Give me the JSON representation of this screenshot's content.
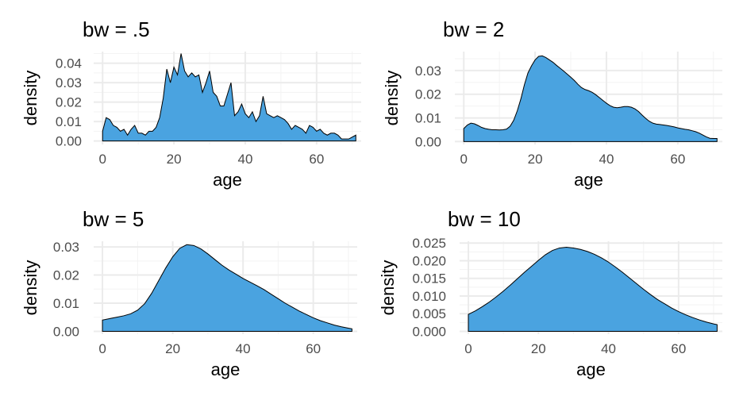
{
  "chart_data": [
    {
      "type": "area",
      "title": "bw = .5",
      "xlabel": "age",
      "ylabel": "density",
      "xlim": [
        -2.5,
        72.5
      ],
      "ylim": [
        -0.0018,
        0.046
      ],
      "xticks": [
        0,
        20,
        40,
        60
      ],
      "xtick_labels": [
        "0",
        "20",
        "40",
        "60"
      ],
      "yticks": [
        0,
        0.01,
        0.02,
        0.03,
        0.04
      ],
      "ytick_labels": [
        "0.00",
        "0.01",
        "0.02",
        "0.03",
        "0.04"
      ],
      "grid": true,
      "fill_color": "#4aa3e0",
      "x": [
        0,
        1,
        2,
        3,
        4,
        5,
        6,
        7,
        8,
        9,
        10,
        11,
        12,
        13,
        14,
        15,
        16,
        17,
        18,
        19,
        20,
        21,
        22,
        23,
        24,
        25,
        26,
        27,
        28,
        29,
        30,
        31,
        32,
        33,
        34,
        35,
        36,
        37,
        38,
        39,
        40,
        41,
        42,
        43,
        44,
        45,
        46,
        47,
        48,
        49,
        50,
        51,
        52,
        53,
        54,
        55,
        56,
        57,
        58,
        59,
        60,
        61,
        62,
        63,
        64,
        65,
        66,
        67,
        68,
        69,
        70,
        71
      ],
      "values": [
        0.005,
        0.012,
        0.011,
        0.008,
        0.007,
        0.005,
        0.006,
        0.003,
        0.006,
        0.008,
        0.004,
        0.004,
        0.003,
        0.005,
        0.005,
        0.007,
        0.012,
        0.022,
        0.037,
        0.03,
        0.038,
        0.034,
        0.045,
        0.036,
        0.033,
        0.035,
        0.033,
        0.034,
        0.025,
        0.03,
        0.036,
        0.025,
        0.023,
        0.018,
        0.018,
        0.024,
        0.03,
        0.013,
        0.015,
        0.019,
        0.014,
        0.012,
        0.015,
        0.01,
        0.013,
        0.023,
        0.014,
        0.013,
        0.012,
        0.013,
        0.012,
        0.011,
        0.009,
        0.006,
        0.008,
        0.007,
        0.006,
        0.004,
        0.008,
        0.007,
        0.005,
        0.006,
        0.004,
        0.003,
        0.004,
        0.004,
        0.003,
        0.001,
        0.001,
        0.001,
        0.002,
        0.003
      ]
    },
    {
      "type": "area",
      "title": "bw = 2",
      "xlabel": "age",
      "ylabel": "density",
      "xlim": [
        -2.5,
        72.5
      ],
      "ylim": [
        -0.0012,
        0.038
      ],
      "xticks": [
        0,
        20,
        40,
        60
      ],
      "xtick_labels": [
        "0",
        "20",
        "40",
        "60"
      ],
      "yticks": [
        0,
        0.01,
        0.02,
        0.03
      ],
      "ytick_labels": [
        "0.00",
        "0.01",
        "0.02",
        "0.03"
      ],
      "grid": true,
      "fill_color": "#4aa3e0",
      "x": [
        0,
        1,
        2,
        3,
        4,
        5,
        6,
        7,
        8,
        9,
        10,
        11,
        12,
        13,
        14,
        15,
        16,
        17,
        18,
        19,
        20,
        21,
        22,
        23,
        24,
        25,
        26,
        27,
        28,
        29,
        30,
        31,
        32,
        33,
        34,
        35,
        36,
        37,
        38,
        39,
        40,
        41,
        42,
        43,
        44,
        45,
        46,
        47,
        48,
        49,
        50,
        51,
        52,
        53,
        54,
        55,
        56,
        57,
        58,
        59,
        60,
        61,
        62,
        63,
        64,
        65,
        66,
        67,
        68,
        69,
        70,
        71
      ],
      "values": [
        0.0055,
        0.007,
        0.0078,
        0.0075,
        0.0068,
        0.006,
        0.0055,
        0.0052,
        0.005,
        0.005,
        0.0049,
        0.005,
        0.0053,
        0.0065,
        0.009,
        0.013,
        0.018,
        0.024,
        0.029,
        0.032,
        0.0345,
        0.036,
        0.0362,
        0.0355,
        0.0345,
        0.0335,
        0.0322,
        0.031,
        0.0298,
        0.0285,
        0.0272,
        0.0258,
        0.0242,
        0.0228,
        0.022,
        0.0215,
        0.0208,
        0.0198,
        0.0186,
        0.0174,
        0.0162,
        0.0152,
        0.0145,
        0.0143,
        0.0145,
        0.0148,
        0.0148,
        0.0145,
        0.0138,
        0.0127,
        0.0112,
        0.0098,
        0.0086,
        0.0078,
        0.0074,
        0.0072,
        0.007,
        0.0068,
        0.0065,
        0.0062,
        0.0058,
        0.0055,
        0.0052,
        0.005,
        0.0046,
        0.0042,
        0.0036,
        0.0028,
        0.002,
        0.0014,
        0.0013,
        0.0013
      ]
    },
    {
      "type": "area",
      "title": "bw = 5",
      "xlabel": "age",
      "ylabel": "density",
      "xlim": [
        -2.5,
        72.5
      ],
      "ylim": [
        -0.001,
        0.032
      ],
      "xticks": [
        0,
        20,
        40,
        60
      ],
      "xtick_labels": [
        "0",
        "20",
        "40",
        "60"
      ],
      "yticks": [
        0,
        0.01,
        0.02,
        0.03
      ],
      "ytick_labels": [
        "0.00",
        "0.01",
        "0.02",
        "0.03"
      ],
      "grid": true,
      "fill_color": "#4aa3e0",
      "x": [
        0,
        2,
        4,
        6,
        8,
        10,
        12,
        14,
        16,
        18,
        20,
        22,
        24,
        26,
        28,
        30,
        32,
        34,
        36,
        38,
        40,
        42,
        44,
        46,
        48,
        50,
        52,
        54,
        56,
        58,
        60,
        62,
        64,
        66,
        68,
        70,
        71
      ],
      "values": [
        0.004,
        0.0045,
        0.005,
        0.0055,
        0.0062,
        0.0075,
        0.0098,
        0.0135,
        0.018,
        0.0225,
        0.0265,
        0.0295,
        0.0308,
        0.0305,
        0.0293,
        0.0275,
        0.0255,
        0.0235,
        0.0218,
        0.0203,
        0.0188,
        0.0175,
        0.0162,
        0.0148,
        0.0132,
        0.0116,
        0.01,
        0.0086,
        0.0072,
        0.006,
        0.0048,
        0.0038,
        0.003,
        0.0022,
        0.0016,
        0.0011,
        0.0009
      ]
    },
    {
      "type": "area",
      "title": "bw = 10",
      "xlabel": "age",
      "ylabel": "density",
      "xlim": [
        -2.5,
        72.5
      ],
      "ylim": [
        -0.0008,
        0.0255
      ],
      "xticks": [
        0,
        20,
        40,
        60
      ],
      "xtick_labels": [
        "0",
        "20",
        "40",
        "60"
      ],
      "yticks": [
        0,
        0.005,
        0.01,
        0.015,
        0.02,
        0.025
      ],
      "ytick_labels": [
        "0.000",
        "0.005",
        "0.010",
        "0.015",
        "0.020",
        "0.025"
      ],
      "grid": true,
      "fill_color": "#4aa3e0",
      "x": [
        0,
        2,
        4,
        6,
        8,
        10,
        12,
        14,
        16,
        18,
        20,
        22,
        24,
        26,
        28,
        30,
        32,
        34,
        36,
        38,
        40,
        42,
        44,
        46,
        48,
        50,
        52,
        54,
        56,
        58,
        60,
        62,
        64,
        66,
        68,
        70,
        71
      ],
      "values": [
        0.0048,
        0.0058,
        0.007,
        0.0083,
        0.0098,
        0.0114,
        0.0131,
        0.0149,
        0.0167,
        0.0184,
        0.0201,
        0.0217,
        0.0229,
        0.0236,
        0.0238,
        0.0236,
        0.0232,
        0.0226,
        0.0218,
        0.0208,
        0.0196,
        0.0182,
        0.0167,
        0.0151,
        0.0135,
        0.0119,
        0.0104,
        0.009,
        0.0078,
        0.0066,
        0.0056,
        0.0047,
        0.0039,
        0.0032,
        0.0026,
        0.0021,
        0.0019
      ]
    }
  ]
}
